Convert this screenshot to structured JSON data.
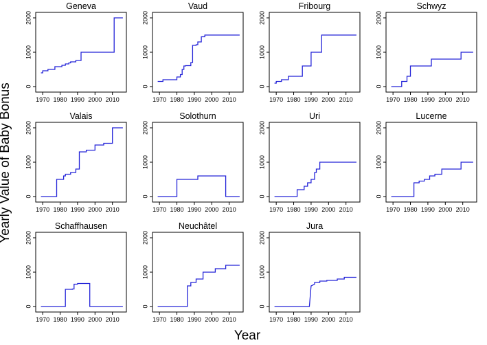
{
  "figure": {
    "ylabel": "Yearly Value of Baby Bonus",
    "xlabel": "Year",
    "line_color": "#2323d8"
  },
  "chart_data": [
    {
      "type": "line",
      "title": "Geneva",
      "xlim": [
        1966,
        2018
      ],
      "ylim": [
        0,
        2000
      ],
      "xticks": [
        1970,
        1980,
        1990,
        2000,
        2010
      ],
      "yticks": [
        0,
        1000,
        2000
      ],
      "x": [
        1969,
        1970,
        1970,
        1973,
        1973,
        1977,
        1977,
        1981,
        1981,
        1983,
        1983,
        1985,
        1985,
        1986,
        1986,
        1989,
        1989,
        1992,
        1992,
        2011,
        2011,
        2016
      ],
      "y": [
        400,
        400,
        460,
        460,
        500,
        500,
        580,
        580,
        620,
        620,
        660,
        660,
        690,
        690,
        720,
        720,
        760,
        760,
        1000,
        1000,
        2000,
        2000
      ]
    },
    {
      "type": "line",
      "title": "Vaud",
      "xlim": [
        1966,
        2018
      ],
      "ylim": [
        0,
        2000
      ],
      "xticks": [
        1970,
        1980,
        1990,
        2000,
        2010
      ],
      "yticks": [
        0,
        1000,
        2000
      ],
      "x": [
        1969,
        1972,
        1972,
        1980,
        1980,
        1982,
        1982,
        1983,
        1983,
        1984,
        1984,
        1985,
        1985,
        1988,
        1988,
        1989,
        1989,
        1991,
        1991,
        1992,
        1992,
        1994,
        1994,
        1996,
        1996,
        2016
      ],
      "y": [
        150,
        150,
        200,
        200,
        280,
        280,
        350,
        350,
        500,
        500,
        600,
        600,
        610,
        610,
        700,
        700,
        1200,
        1200,
        1220,
        1220,
        1300,
        1300,
        1450,
        1450,
        1500,
        1500
      ]
    },
    {
      "type": "line",
      "title": "Fribourg",
      "xlim": [
        1966,
        2018
      ],
      "ylim": [
        0,
        2000
      ],
      "xticks": [
        1970,
        1980,
        1990,
        2000,
        2010
      ],
      "yticks": [
        0,
        1000,
        2000
      ],
      "x": [
        1969,
        1970,
        1970,
        1973,
        1973,
        1977,
        1977,
        1985,
        1985,
        1990,
        1990,
        1993,
        1993,
        1996,
        1996,
        2016
      ],
      "y": [
        100,
        100,
        150,
        150,
        200,
        200,
        300,
        300,
        600,
        600,
        1000,
        1000,
        1000,
        1000,
        1500,
        1500
      ]
    },
    {
      "type": "line",
      "title": "Schwyz",
      "xlim": [
        1966,
        2018
      ],
      "ylim": [
        0,
        2000
      ],
      "xticks": [
        1970,
        1980,
        1990,
        2000,
        2010
      ],
      "yticks": [
        0,
        1000,
        2000
      ],
      "x": [
        1969,
        1975,
        1975,
        1978,
        1978,
        1980,
        1980,
        1984,
        1984,
        1992,
        1992,
        2009,
        2009,
        2016
      ],
      "y": [
        0,
        0,
        150,
        150,
        300,
        300,
        600,
        600,
        600,
        600,
        800,
        800,
        1000,
        1000
      ]
    },
    {
      "type": "line",
      "title": "Valais",
      "xlim": [
        1966,
        2018
      ],
      "ylim": [
        0,
        2000
      ],
      "xticks": [
        1970,
        1980,
        1990,
        2000,
        2010
      ],
      "yticks": [
        0,
        1000,
        2000
      ],
      "x": [
        1969,
        1978,
        1978,
        1982,
        1982,
        1983,
        1983,
        1986,
        1986,
        1989,
        1989,
        1991,
        1991,
        1995,
        1995,
        2000,
        2000,
        2005,
        2005,
        2010,
        2010,
        2016
      ],
      "y": [
        0,
        0,
        500,
        500,
        600,
        600,
        650,
        650,
        700,
        700,
        800,
        800,
        1300,
        1300,
        1350,
        1350,
        1500,
        1500,
        1550,
        1550,
        2000,
        2000
      ]
    },
    {
      "type": "line",
      "title": "Solothurn",
      "xlim": [
        1966,
        2018
      ],
      "ylim": [
        0,
        2000
      ],
      "xticks": [
        1970,
        1980,
        1990,
        2000,
        2010
      ],
      "yticks": [
        0,
        1000,
        2000
      ],
      "x": [
        1969,
        1980,
        1980,
        1992,
        1992,
        2008,
        2008,
        2016
      ],
      "y": [
        0,
        0,
        500,
        500,
        600,
        600,
        0,
        0
      ]
    },
    {
      "type": "line",
      "title": "Uri",
      "xlim": [
        1966,
        2018
      ],
      "ylim": [
        0,
        2000
      ],
      "xticks": [
        1970,
        1980,
        1990,
        2000,
        2010
      ],
      "yticks": [
        0,
        1000,
        2000
      ],
      "x": [
        1969,
        1982,
        1982,
        1986,
        1986,
        1988,
        1988,
        1990,
        1990,
        1992,
        1992,
        1993,
        1993,
        1995,
        1995,
        2016
      ],
      "y": [
        0,
        0,
        200,
        200,
        300,
        300,
        400,
        400,
        500,
        500,
        700,
        700,
        800,
        800,
        1000,
        1000
      ]
    },
    {
      "type": "line",
      "title": "Lucerne",
      "xlim": [
        1966,
        2018
      ],
      "ylim": [
        0,
        2000
      ],
      "xticks": [
        1970,
        1980,
        1990,
        2000,
        2010
      ],
      "yticks": [
        0,
        1000,
        2000
      ],
      "x": [
        1969,
        1982,
        1982,
        1985,
        1985,
        1988,
        1988,
        1991,
        1991,
        1994,
        1994,
        1998,
        1998,
        2009,
        2009,
        2016
      ],
      "y": [
        0,
        0,
        400,
        400,
        450,
        450,
        500,
        500,
        600,
        600,
        650,
        650,
        800,
        800,
        1000,
        1000
      ]
    },
    {
      "type": "line",
      "title": "Schaffhausen",
      "xlim": [
        1966,
        2018
      ],
      "ylim": [
        0,
        2000
      ],
      "xticks": [
        1970,
        1980,
        1990,
        2000,
        2010
      ],
      "yticks": [
        0,
        1000,
        2000
      ],
      "x": [
        1969,
        1983,
        1983,
        1987,
        1987,
        1988,
        1988,
        1990,
        1990,
        1997,
        1997,
        2016
      ],
      "y": [
        0,
        0,
        500,
        500,
        510,
        510,
        650,
        650,
        670,
        670,
        0,
        0
      ]
    },
    {
      "type": "line",
      "title": "Neuchâtel",
      "xlim": [
        1966,
        2018
      ],
      "ylim": [
        0,
        2000
      ],
      "xticks": [
        1970,
        1980,
        1990,
        2000,
        2010
      ],
      "yticks": [
        0,
        1000,
        2000
      ],
      "x": [
        1969,
        1986,
        1986,
        1988,
        1988,
        1991,
        1991,
        1995,
        1995,
        2002,
        2002,
        2008,
        2008,
        2016
      ],
      "y": [
        0,
        0,
        600,
        600,
        700,
        700,
        800,
        800,
        1000,
        1000,
        1100,
        1100,
        1200,
        1200
      ]
    },
    {
      "type": "line",
      "title": "Jura",
      "xlim": [
        1966,
        2018
      ],
      "ylim": [
        0,
        2000
      ],
      "xticks": [
        1970,
        1980,
        1990,
        2000,
        2010
      ],
      "yticks": [
        0,
        1000,
        2000
      ],
      "x": [
        1969,
        1989,
        1990,
        1992,
        1992,
        1995,
        1995,
        1999,
        1999,
        2005,
        2005,
        2009,
        2009,
        2016
      ],
      "y": [
        0,
        0,
        600,
        650,
        700,
        700,
        740,
        740,
        760,
        760,
        800,
        800,
        850,
        850
      ]
    }
  ]
}
